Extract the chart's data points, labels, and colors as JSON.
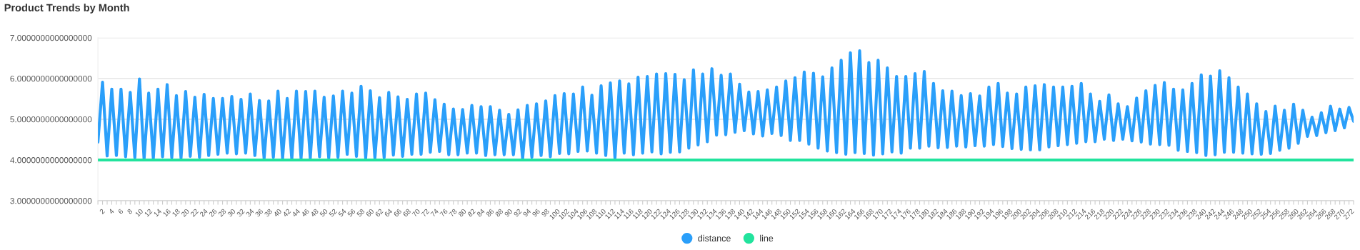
{
  "chart_data": {
    "type": "line",
    "title": "Product Trends by Month",
    "categories": [
      null,
      "2",
      null,
      "4",
      null,
      "6",
      null,
      "8",
      null,
      "10",
      null,
      "12",
      null,
      "14",
      null,
      "16",
      null,
      "18",
      null,
      "20",
      null,
      "22",
      null,
      "24",
      null,
      "26",
      null,
      "28",
      null,
      "30",
      null,
      "32",
      null,
      "34",
      null,
      "36",
      null,
      "38",
      null,
      "40",
      null,
      "42",
      null,
      "44",
      null,
      "46",
      null,
      "48",
      null,
      "50",
      null,
      "52",
      null,
      "54",
      null,
      "56",
      null,
      "58",
      null,
      "60",
      null,
      "62",
      null,
      "64",
      null,
      "66",
      null,
      "68",
      null,
      "70",
      null,
      "72",
      null,
      "74",
      null,
      "76",
      null,
      "78",
      null,
      "80",
      null,
      "82",
      null,
      "84",
      null,
      "86",
      null,
      "88",
      null,
      "90",
      null,
      "92",
      null,
      "94",
      null,
      "96",
      null,
      "98",
      null,
      "100",
      null,
      "102",
      null,
      "104",
      null,
      "106",
      null,
      "108",
      null,
      "110",
      null,
      "112",
      null,
      "114",
      null,
      "116",
      null,
      "118",
      null,
      "120",
      null,
      "122",
      null,
      "124",
      null,
      "126",
      null,
      "128",
      null,
      "130",
      null,
      "132",
      null,
      "134",
      null,
      "136",
      null,
      "138",
      null,
      "140",
      null,
      "142",
      null,
      "144",
      null,
      "146",
      null,
      "148",
      null,
      "150",
      null,
      "152",
      null,
      "154",
      null,
      "156",
      null,
      "158",
      null,
      "160",
      null,
      "162",
      null,
      "164",
      null,
      "166",
      null,
      "168",
      null,
      "170",
      null,
      "172",
      null,
      "174",
      null,
      "176",
      null,
      "178",
      null,
      "180",
      null,
      "182",
      null,
      "184",
      null,
      "186",
      null,
      "188",
      null,
      "190",
      null,
      "192",
      null,
      "194",
      null,
      "196",
      null,
      "198",
      null,
      "200",
      null,
      "202",
      null,
      "204",
      null,
      "206",
      null,
      "208",
      null,
      "210",
      null,
      "212",
      null,
      "214",
      null,
      "216",
      null,
      "218",
      null,
      "220",
      null,
      "222",
      null,
      "224",
      null,
      "226",
      null,
      "228",
      null,
      "230",
      null,
      "232",
      null,
      "234",
      null,
      "236",
      null,
      "238",
      null,
      "240",
      null,
      "242",
      null,
      "244",
      null,
      "246",
      null,
      "248",
      null,
      "250",
      null,
      "252",
      null,
      "254",
      null,
      "256",
      null,
      "258",
      null,
      "260",
      null,
      "262",
      null,
      "264",
      null,
      "266",
      null,
      "268",
      null,
      "270",
      null,
      "272",
      null
    ],
    "series": [
      {
        "name": "distance",
        "color": "#2a9ffa",
        "values": [
          4.44,
          5.91,
          4.1,
          5.74,
          4.11,
          5.74,
          4.08,
          5.66,
          4.06,
          5.99,
          4.02,
          5.64,
          4.04,
          5.74,
          4.08,
          5.85,
          4.06,
          5.58,
          4.05,
          5.68,
          4.09,
          5.54,
          4.07,
          5.61,
          4.11,
          5.51,
          4.14,
          5.51,
          4.17,
          5.56,
          4.15,
          5.49,
          4.17,
          5.62,
          4.11,
          5.46,
          4.04,
          5.45,
          4.07,
          5.69,
          4.04,
          5.51,
          4.02,
          5.69,
          4.04,
          5.68,
          4.05,
          5.69,
          4.08,
          5.54,
          4.05,
          5.57,
          4.07,
          5.69,
          4.14,
          5.64,
          4.09,
          5.81,
          4.05,
          5.7,
          4.05,
          5.53,
          4.06,
          5.66,
          4.12,
          5.55,
          4.09,
          5.49,
          4.14,
          5.62,
          4.14,
          5.64,
          4.19,
          5.48,
          4.21,
          5.37,
          4.13,
          5.25,
          4.13,
          5.24,
          4.17,
          5.34,
          4.17,
          5.31,
          4.11,
          5.31,
          4.13,
          5.22,
          4.13,
          5.12,
          4.13,
          5.23,
          4.04,
          5.34,
          4.07,
          5.38,
          4.11,
          5.45,
          4.08,
          5.58,
          4.16,
          5.63,
          4.15,
          5.62,
          4.21,
          5.79,
          4.22,
          5.59,
          4.17,
          5.82,
          4.11,
          5.89,
          4.05,
          5.94,
          4.17,
          5.87,
          4.13,
          6.03,
          4.17,
          6.05,
          4.2,
          6.11,
          4.15,
          6.12,
          4.19,
          6.1,
          4.2,
          5.97,
          4.29,
          6.21,
          4.37,
          6.11,
          4.45,
          6.24,
          4.61,
          6.08,
          4.62,
          6.11,
          4.68,
          5.86,
          4.72,
          5.67,
          4.64,
          5.68,
          4.59,
          5.72,
          4.65,
          5.79,
          4.6,
          5.94,
          4.48,
          6.02,
          4.48,
          6.16,
          4.39,
          6.13,
          4.29,
          6.04,
          4.22,
          6.26,
          4.18,
          6.45,
          4.14,
          6.63,
          4.18,
          6.68,
          4.16,
          6.39,
          4.12,
          6.45,
          4.15,
          6.26,
          4.2,
          6.05,
          4.17,
          6.05,
          4.29,
          6.12,
          4.29,
          6.17,
          4.34,
          5.88,
          4.3,
          5.7,
          4.31,
          5.69,
          4.34,
          5.58,
          4.32,
          5.63,
          4.35,
          5.57,
          4.34,
          5.79,
          4.38,
          5.88,
          4.33,
          5.64,
          4.28,
          5.62,
          4.26,
          5.79,
          4.25,
          5.82,
          4.25,
          5.85,
          4.32,
          5.79,
          4.35,
          5.79,
          4.38,
          5.81,
          4.41,
          5.88,
          4.45,
          5.62,
          4.45,
          5.44,
          4.51,
          5.6,
          4.48,
          5.38,
          4.51,
          5.31,
          4.47,
          5.52,
          4.44,
          5.7,
          4.39,
          5.83,
          4.38,
          5.9,
          4.36,
          5.74,
          4.24,
          5.72,
          4.21,
          5.88,
          4.18,
          6.09,
          4.11,
          6.06,
          4.13,
          6.19,
          4.19,
          6.02,
          4.19,
          5.79,
          4.17,
          5.62,
          4.15,
          5.38,
          4.14,
          5.19,
          4.16,
          5.32,
          4.24,
          5.22,
          4.29,
          5.37,
          4.41,
          5.22,
          4.58,
          5.05,
          4.6,
          5.16,
          4.67,
          5.32,
          4.72,
          5.25,
          4.79,
          5.29,
          4.95
        ]
      },
      {
        "name": "line",
        "color": "#22e39d",
        "values": [
          4,
          4,
          4,
          4,
          4,
          4,
          4,
          4,
          4,
          4,
          4,
          4,
          4,
          4,
          4,
          4,
          4,
          4,
          4,
          4,
          4,
          4,
          4,
          4,
          4,
          4,
          4,
          4,
          4,
          4,
          4,
          4,
          4,
          4,
          4,
          4,
          4,
          4,
          4,
          4,
          4,
          4,
          4,
          4,
          4,
          4,
          4,
          4,
          4,
          4,
          4,
          4,
          4,
          4,
          4,
          4,
          4,
          4,
          4,
          4,
          4,
          4,
          4,
          4,
          4,
          4,
          4,
          4,
          4,
          4,
          4,
          4,
          4,
          4,
          4,
          4,
          4,
          4,
          4,
          4,
          4,
          4,
          4,
          4,
          4,
          4,
          4,
          4,
          4,
          4,
          4,
          4,
          4,
          4,
          4,
          4,
          4,
          4,
          4,
          4,
          4,
          4,
          4,
          4,
          4,
          4,
          4,
          4,
          4,
          4,
          4,
          4,
          4,
          4,
          4,
          4,
          4,
          4,
          4,
          4,
          4,
          4,
          4,
          4,
          4,
          4,
          4,
          4,
          4,
          4,
          4,
          4,
          4,
          4,
          4,
          4,
          4,
          4,
          4,
          4,
          4,
          4,
          4,
          4,
          4,
          4,
          4,
          4,
          4,
          4,
          4,
          4,
          4,
          4,
          4,
          4,
          4,
          4,
          4,
          4,
          4,
          4,
          4,
          4,
          4,
          4,
          4,
          4,
          4,
          4,
          4,
          4,
          4,
          4,
          4,
          4,
          4,
          4,
          4,
          4,
          4,
          4,
          4,
          4,
          4,
          4,
          4,
          4,
          4,
          4,
          4,
          4,
          4,
          4,
          4,
          4,
          4,
          4,
          4,
          4,
          4,
          4,
          4,
          4,
          4,
          4,
          4,
          4,
          4,
          4,
          4,
          4,
          4,
          4,
          4,
          4,
          4,
          4,
          4,
          4,
          4,
          4,
          4,
          4,
          4,
          4,
          4,
          4,
          4,
          4,
          4,
          4,
          4,
          4,
          4,
          4,
          4,
          4,
          4,
          4,
          4,
          4,
          4,
          4,
          4,
          4,
          4,
          4,
          4,
          4,
          4,
          4,
          4,
          4,
          4,
          4,
          4,
          4,
          4,
          4,
          4,
          4,
          4,
          4,
          4,
          4,
          4,
          4,
          4,
          4,
          4,
          4,
          4
        ]
      }
    ],
    "ylim": [
      3,
      7
    ],
    "yticks": [
      {
        "value": 3,
        "label": "3.0000000000000000"
      },
      {
        "value": 4,
        "label": "4.0000000000000000"
      },
      {
        "value": 5,
        "label": "5.0000000000000000"
      },
      {
        "value": 6,
        "label": "6.0000000000000000"
      },
      {
        "value": 7,
        "label": "7.0000000000000000"
      }
    ],
    "grid": "y",
    "legend": "bottom"
  }
}
